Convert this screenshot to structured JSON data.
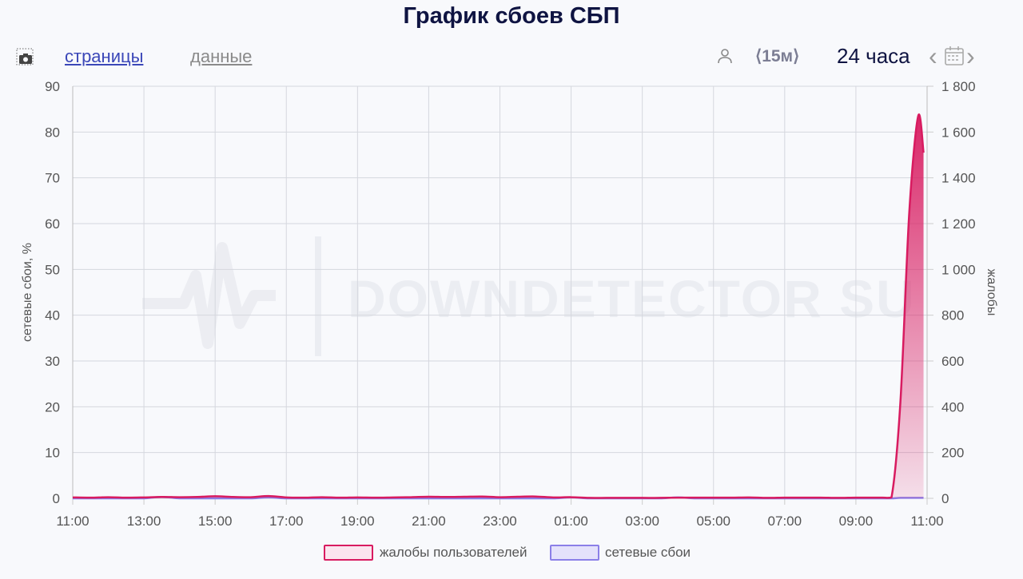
{
  "title": "График сбоев СБП",
  "toolbar": {
    "screenshot_icon": "camera-icon",
    "tab_pages": "страницы",
    "tab_data": "данные",
    "user_icon": "user-icon",
    "interval": "⟨15м⟩",
    "period": "24 часа",
    "prev": "‹",
    "next": "›",
    "calendar_icon": "calendar-icon"
  },
  "watermark": "DOWNDETECTOR SU",
  "colors": {
    "complaints": "#d81b60",
    "network": "#8b7fe8",
    "grid": "#d5d7de"
  },
  "chart_data": {
    "type": "area",
    "ylabel_left": "сетевые сбои, %",
    "ylabel_right": "жалобы",
    "ylim_left": [
      0,
      90
    ],
    "ylim_right": [
      0,
      1800
    ],
    "yticks_left": [
      "0",
      "10",
      "20",
      "30",
      "40",
      "50",
      "60",
      "70",
      "80",
      "90"
    ],
    "yticks_right": [
      "0",
      "200",
      "400",
      "600",
      "800",
      "1 000",
      "1 200",
      "1 400",
      "1 600",
      "1 800"
    ],
    "xlim": [
      "11:00",
      "11:00"
    ],
    "xticks": [
      "11:00",
      "13:00",
      "15:00",
      "17:00",
      "19:00",
      "21:00",
      "23:00",
      "01:00",
      "03:00",
      "05:00",
      "07:00",
      "09:00",
      "11:00"
    ],
    "grid": true,
    "legend_position": "bottom",
    "x": [
      "11:00",
      "11:30",
      "12:00",
      "12:30",
      "13:00",
      "13:30",
      "14:00",
      "14:30",
      "15:00",
      "15:30",
      "16:00",
      "16:30",
      "17:00",
      "17:30",
      "18:00",
      "18:30",
      "19:00",
      "19:30",
      "20:00",
      "20:30",
      "21:00",
      "21:30",
      "22:00",
      "22:30",
      "23:00",
      "23:30",
      "00:00",
      "00:30",
      "01:00",
      "01:30",
      "02:00",
      "02:30",
      "03:00",
      "03:30",
      "04:00",
      "04:30",
      "05:00",
      "05:30",
      "06:00",
      "06:30",
      "07:00",
      "07:30",
      "08:00",
      "08:30",
      "09:00",
      "09:30",
      "09:45",
      "10:00",
      "10:15",
      "10:30",
      "10:45",
      "10:54"
    ],
    "series": [
      {
        "name": "жалобы пользователей",
        "axis": "right",
        "values": [
          4,
          3,
          5,
          3,
          4,
          6,
          5,
          6,
          9,
          6,
          5,
          10,
          4,
          3,
          5,
          3,
          4,
          3,
          4,
          5,
          7,
          6,
          7,
          8,
          5,
          7,
          8,
          4,
          5,
          2,
          2,
          2,
          2,
          2,
          3,
          3,
          3,
          3,
          4,
          2,
          3,
          3,
          3,
          2,
          3,
          3,
          3,
          4,
          420,
          1250,
          1670,
          1510
        ]
      },
      {
        "name": "сетевые сбои",
        "axis": "left",
        "values": [
          0,
          0,
          0,
          0,
          0,
          0.3,
          0,
          0,
          0,
          0,
          0,
          0.2,
          0,
          0,
          0,
          0,
          0,
          0,
          0,
          0,
          0,
          0,
          0,
          0,
          0,
          0,
          0,
          0,
          0.2,
          0,
          0,
          0,
          0,
          0,
          0.2,
          0,
          0,
          0,
          0,
          0,
          0,
          0,
          0,
          0,
          0,
          0,
          0,
          0,
          0.1,
          0.1,
          0.1,
          0.1
        ]
      }
    ]
  }
}
